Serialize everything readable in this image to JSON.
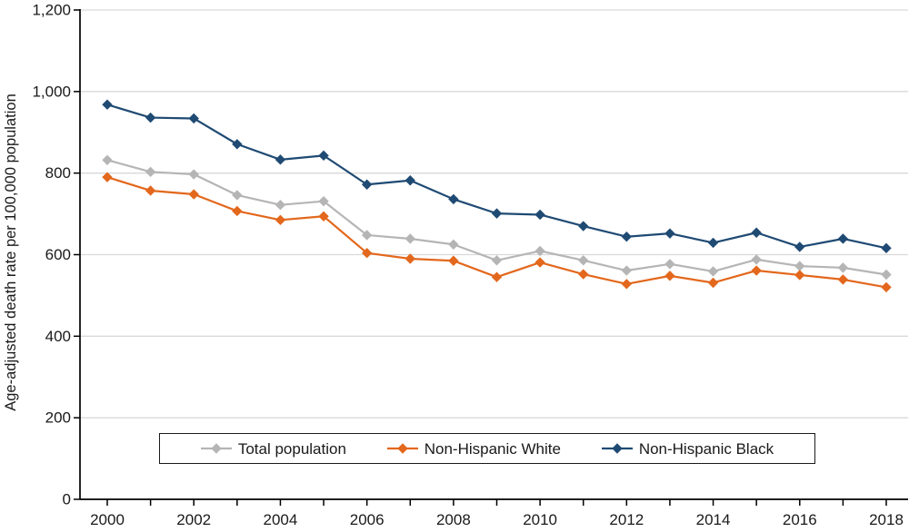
{
  "chart_data": {
    "type": "line",
    "title": "",
    "xlabel": "",
    "ylabel": "Age-adjusted death rate per 100,000 population",
    "x": [
      2000,
      2001,
      2002,
      2003,
      2004,
      2005,
      2006,
      2007,
      2008,
      2009,
      2010,
      2011,
      2012,
      2013,
      2014,
      2015,
      2016,
      2017,
      2018
    ],
    "x_ticks_labeled": [
      "2000",
      "2002",
      "2004",
      "2006",
      "2008",
      "2010",
      "2012",
      "2014",
      "2016",
      "2018"
    ],
    "xlim": [
      2000,
      2018
    ],
    "ylim": [
      0,
      1200
    ],
    "y_ticks": [
      0,
      200,
      400,
      600,
      800,
      1000,
      1200
    ],
    "y_tick_labels": [
      "0",
      "200",
      "400",
      "600",
      "800",
      "1,000",
      "1,200"
    ],
    "grid": "horizontal",
    "legend_position": "bottom-inside-box",
    "series": [
      {
        "name": "Total population",
        "color": "#b5b5b5",
        "marker": "diamond",
        "values": [
          832,
          803,
          797,
          746,
          722,
          731,
          648,
          639,
          625,
          586,
          609,
          586,
          561,
          577,
          559,
          588,
          572,
          568,
          551
        ]
      },
      {
        "name": "Non-Hispanic White",
        "color": "#e3671c",
        "marker": "diamond",
        "values": [
          790,
          757,
          748,
          707,
          685,
          694,
          604,
          590,
          585,
          545,
          581,
          552,
          528,
          548,
          531,
          561,
          550,
          539,
          520
        ]
      },
      {
        "name": "Non-Hispanic Black",
        "color": "#1f4a73",
        "marker": "diamond",
        "values": [
          968,
          936,
          934,
          871,
          833,
          843,
          772,
          782,
          736,
          701,
          698,
          670,
          644,
          652,
          629,
          654,
          619,
          639,
          616
        ]
      }
    ]
  },
  "colors": {
    "gridline": "#d9d9d9",
    "axis": "#000000",
    "tick_text": "#1a1a1a",
    "background": "#ffffff"
  }
}
